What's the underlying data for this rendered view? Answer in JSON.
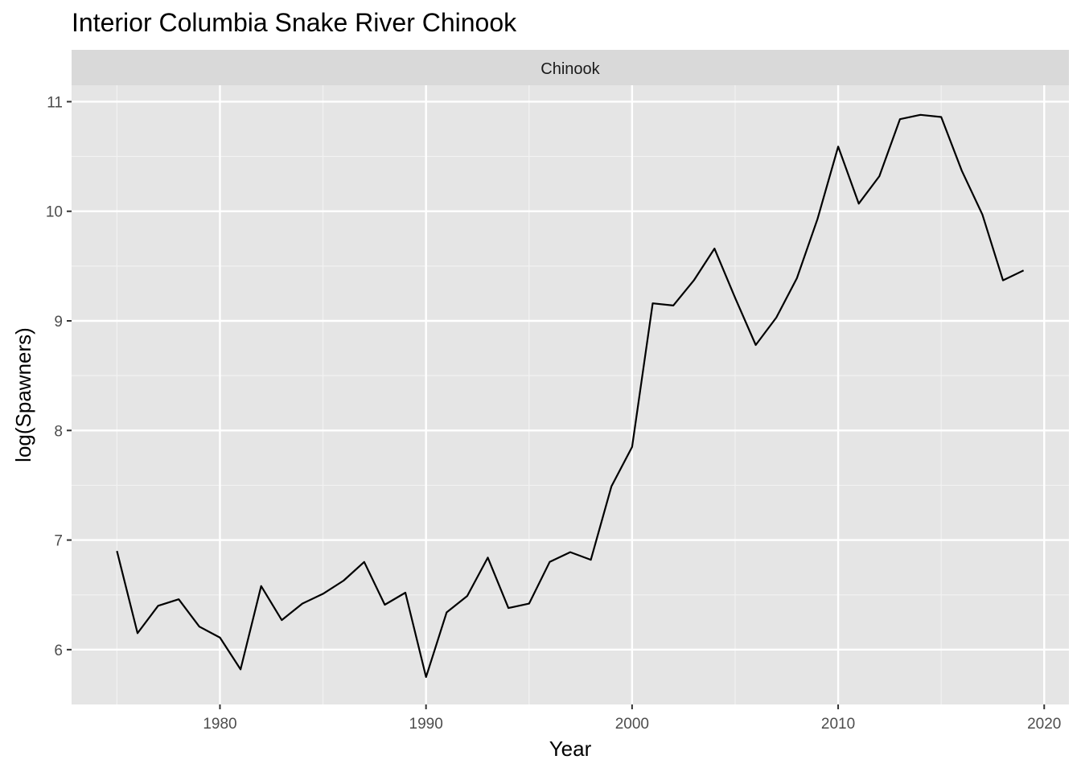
{
  "title": "Interior Columbia Snake River Chinook",
  "facet_label": "Chinook",
  "chart_data": {
    "type": "line",
    "title": "Interior Columbia Snake River Chinook",
    "xlabel": "Year",
    "ylabel": "log(Spawners)",
    "xlim": [
      1972.8,
      2021.2
    ],
    "ylim": [
      5.5,
      11.15
    ],
    "x_ticks": [
      1980,
      1990,
      2000,
      2010,
      2020
    ],
    "y_ticks": [
      6,
      7,
      8,
      9,
      10,
      11
    ],
    "grid": true,
    "series": [
      {
        "color": "#000000",
        "x": [
          1975,
          1976,
          1977,
          1978,
          1979,
          1980,
          1981,
          1982,
          1983,
          1984,
          1985,
          1986,
          1987,
          1988,
          1989,
          1990,
          1991,
          1992,
          1993,
          1994,
          1995,
          1996,
          1997,
          1998,
          1999,
          2000,
          2001,
          2002,
          2003,
          2004,
          2005,
          2006,
          2007,
          2008,
          2009,
          2010,
          2011,
          2012,
          2013,
          2014,
          2015,
          2016,
          2017,
          2018,
          2019
        ],
        "y": [
          6.9,
          6.15,
          6.4,
          6.46,
          6.21,
          6.11,
          5.82,
          6.58,
          6.27,
          6.42,
          6.51,
          6.63,
          6.8,
          6.41,
          6.52,
          5.75,
          6.34,
          6.49,
          6.84,
          6.38,
          6.42,
          6.8,
          6.89,
          6.82,
          7.49,
          7.85,
          9.16,
          9.14,
          9.37,
          9.66,
          9.21,
          8.78,
          9.03,
          9.39,
          9.93,
          10.59,
          10.07,
          10.32,
          10.84,
          10.88,
          10.86,
          10.37,
          9.97,
          9.37,
          9.46
        ]
      }
    ]
  }
}
